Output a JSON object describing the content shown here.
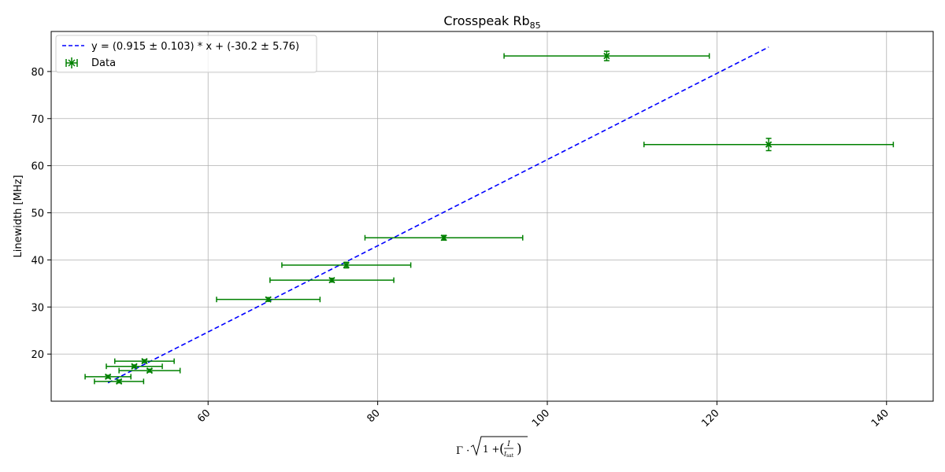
{
  "chart_data": {
    "type": "scatter",
    "title": "Crosspeak Rb",
    "title_subscript": "85",
    "xlabel": "Γ · √(1 + (I / I_sat))",
    "ylabel": "Linewidth [MHz]",
    "xlim": [
      41.5,
      145.5
    ],
    "ylim": [
      10.0,
      88.5
    ],
    "xticks": [
      60,
      80,
      100,
      120,
      140
    ],
    "yticks": [
      20,
      30,
      40,
      50,
      60,
      70,
      80
    ],
    "grid": true,
    "legend_position": "top-left",
    "colors": {
      "data": "#008000",
      "fit": "#0000ff"
    },
    "series": [
      {
        "name": "Data",
        "kind": "errorbar",
        "points": [
          {
            "x": 49.5,
            "y": 14.2,
            "xerr": 2.9,
            "yerr": 0.3
          },
          {
            "x": 48.2,
            "y": 15.2,
            "xerr": 2.7,
            "yerr": 0.3
          },
          {
            "x": 53.1,
            "y": 16.5,
            "xerr": 3.6,
            "yerr": 0.3
          },
          {
            "x": 51.3,
            "y": 17.4,
            "xerr": 3.3,
            "yerr": 0.3
          },
          {
            "x": 52.5,
            "y": 18.5,
            "xerr": 3.5,
            "yerr": 0.3
          },
          {
            "x": 67.1,
            "y": 31.6,
            "xerr": 6.1,
            "yerr": 0.4
          },
          {
            "x": 74.6,
            "y": 35.7,
            "xerr": 7.3,
            "yerr": 0.4
          },
          {
            "x": 76.3,
            "y": 38.9,
            "xerr": 7.6,
            "yerr": 0.6
          },
          {
            "x": 87.8,
            "y": 44.7,
            "xerr": 9.3,
            "yerr": 0.5
          },
          {
            "x": 107.0,
            "y": 83.3,
            "xerr": 12.1,
            "yerr": 1.0
          },
          {
            "x": 126.1,
            "y": 64.5,
            "xerr": 14.7,
            "yerr": 1.3
          }
        ]
      },
      {
        "name": "y = (0.915 ± 0.103) * x + (-30.2 ± 5.76)",
        "kind": "fit-line",
        "slope": 0.915,
        "intercept": -30.2,
        "x_range": [
          48.2,
          126.1
        ]
      }
    ]
  }
}
